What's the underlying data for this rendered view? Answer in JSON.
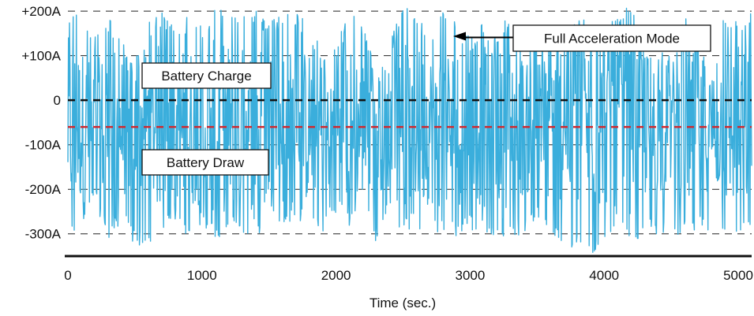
{
  "chart_data": {
    "type": "line",
    "title": "",
    "xlabel": "Time (sec.)",
    "ylabel": "",
    "xlim": [
      0,
      5100
    ],
    "ylim": [
      -350,
      225
    ],
    "x_ticks": [
      0,
      1000,
      2000,
      3000,
      4000,
      5000
    ],
    "x_tick_labels": [
      "0",
      "1000",
      "2000",
      "3000",
      "4000",
      "5000"
    ],
    "y_ticks": [
      200,
      100,
      0,
      -100,
      -200,
      -300
    ],
    "y_tick_labels": [
      "+200A",
      "+100A",
      "0",
      "-100A",
      "-200A",
      "-300A"
    ],
    "grid": "horizontal dashed at each y tick",
    "reference_lines": [
      {
        "y": 0,
        "color": "#111111",
        "style": "dashed"
      },
      {
        "y": -60,
        "color": "#d0282e",
        "style": "dashed"
      }
    ],
    "series": [
      {
        "color": "#3aaedc",
        "x": [
          0,
          100,
          200,
          300,
          400,
          500,
          600,
          700,
          800,
          900,
          1000,
          1100,
          1200,
          1300,
          1400,
          1500,
          1600,
          1700,
          1800,
          1900,
          2000,
          2100,
          2200,
          2300,
          2400,
          2500,
          2600,
          2700,
          2800,
          2900,
          3000,
          3100,
          3200,
          3300,
          3400,
          3500,
          3600,
          3700,
          3800,
          3900,
          4000,
          4100,
          4200,
          4300,
          4400,
          4500,
          4600,
          4700,
          4800,
          4900,
          5000,
          5100
        ],
        "max": [
          210,
          200,
          150,
          190,
          150,
          90,
          180,
          200,
          160,
          190,
          170,
          210,
          220,
          190,
          210,
          180,
          190,
          200,
          170,
          110,
          130,
          200,
          180,
          60,
          130,
          210,
          200,
          150,
          210,
          170,
          140,
          180,
          160,
          190,
          110,
          140,
          160,
          130,
          190,
          180,
          150,
          200,
          210,
          130,
          110,
          100,
          190,
          160,
          50,
          200,
          190,
          200
        ],
        "min": [
          -330,
          -280,
          -230,
          -310,
          -280,
          -330,
          -320,
          -300,
          -270,
          -310,
          -290,
          -320,
          -290,
          -300,
          -300,
          -330,
          -300,
          -260,
          -300,
          -310,
          -250,
          -290,
          -260,
          -320,
          -250,
          -300,
          -290,
          -310,
          -300,
          -310,
          -290,
          -310,
          -300,
          -310,
          -300,
          -270,
          -310,
          -340,
          -340,
          -350,
          -320,
          -290,
          -320,
          -310,
          -300,
          -300,
          -310,
          -300,
          -300,
          -300,
          -310,
          -300
        ]
      }
    ],
    "annotations": [
      {
        "text": "Full Acceleration Mode",
        "x": 2880,
        "y": 155,
        "arrow": true
      },
      {
        "text": "Battery Charge",
        "x": 1450,
        "y": 60,
        "arrow": false
      },
      {
        "text": "Battery Draw",
        "x": 1450,
        "y": -150,
        "arrow": false
      }
    ]
  }
}
